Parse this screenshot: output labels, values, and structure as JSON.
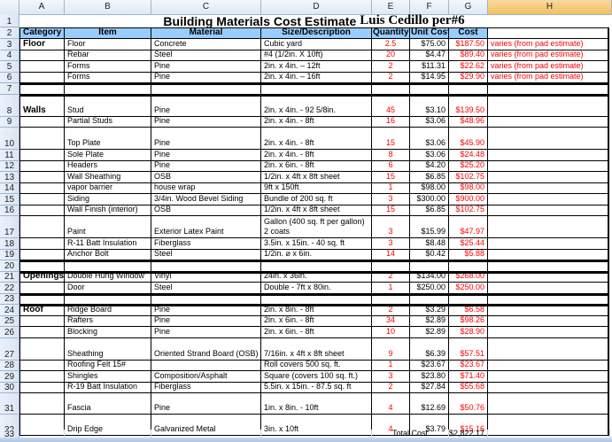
{
  "sheet": {
    "columns": [
      "A",
      "B",
      "C",
      "D",
      "E",
      "F",
      "G",
      "H"
    ],
    "selected_column": "H",
    "title": "Building Materials Cost Estimate",
    "author": "Luis Cedillo per#6",
    "headers": {
      "category": "Category",
      "item": "Item",
      "material": "Material",
      "size": "Size/Description",
      "quantity": "Quantity",
      "unit_cost": "Unit Cost",
      "cost": "Cost",
      "note": ""
    },
    "rows": [
      {
        "num": "3",
        "category": "Floor",
        "item": "Floor",
        "material": "Concrete",
        "size": "Cubic yard",
        "qty": "2.5",
        "unit": "$75.00",
        "cost": "$187.50",
        "note": "varies (from pad estimate)"
      },
      {
        "num": "4",
        "category": "",
        "item": "Rebar",
        "material": "Steel",
        "size": "#4  (1/2in. X 10ft)",
        "qty": "20",
        "unit": "$4.47",
        "cost": "$89.40",
        "note": "varies (from pad estimate)"
      },
      {
        "num": "5",
        "category": "",
        "item": "Forms",
        "material": "Pine",
        "size": "2in. x 4in. – 12ft",
        "qty": "2",
        "unit": "$11.31",
        "cost": "$22.62",
        "note": "varies (from pad estimate)"
      },
      {
        "num": "6",
        "category": "",
        "item": "Forms",
        "material": "Pine",
        "size": "2in. x 4in. – 16ft",
        "qty": "2",
        "unit": "$14.95",
        "cost": "$29.90",
        "note": "varies (from pad estimate)"
      },
      {
        "num": "7",
        "category": "",
        "item": "",
        "material": "",
        "size": "",
        "qty": "",
        "unit": "",
        "cost": "",
        "note": ""
      },
      {
        "num": "8",
        "category": "Walls",
        "item": "Stud",
        "material": "Pine",
        "size": "2in. x 4in. - 92 5/8in.",
        "qty": "45",
        "unit": "$3.10",
        "cost": "$139.50",
        "note": ""
      },
      {
        "num": "9",
        "category": "",
        "item": "Partial Studs",
        "material": "Pine",
        "size": "2in. x 4in. - 8ft",
        "qty": "16",
        "unit": "$3.06",
        "cost": "$48.96",
        "note": ""
      },
      {
        "num": "10",
        "category": "",
        "item": "Top Plate",
        "material": "Pine",
        "size": "2in. x 4in. - 8ft",
        "qty": "15",
        "unit": "$3.06",
        "cost": "$45.90",
        "note": ""
      },
      {
        "num": "11",
        "category": "",
        "item": "Sole Plate",
        "material": "Pine",
        "size": "2in. x 4in. - 8ft",
        "qty": "8",
        "unit": "$3.06",
        "cost": "$24.48",
        "note": ""
      },
      {
        "num": "12",
        "category": "",
        "item": "Headers",
        "material": "Pine",
        "size": "2in. x 6in. - 8ft",
        "qty": "6",
        "unit": "$4.20",
        "cost": "$25.20",
        "note": ""
      },
      {
        "num": "13",
        "category": "",
        "item": "Wall Sheathing",
        "material": "OSB",
        "size": "1/2in. x 4ft x 8ft sheet",
        "qty": "15",
        "unit": "$6.85",
        "cost": "$102.75",
        "note": ""
      },
      {
        "num": "14",
        "category": "",
        "item": "vapor barrier",
        "material": "house wrap",
        "size": "9ft x 150ft",
        "qty": "1",
        "unit": "$98.00",
        "cost": "$98.00",
        "note": ""
      },
      {
        "num": "15",
        "category": "",
        "item": "Siding",
        "material": "3/4in. Wood  Bevel Siding",
        "size": "Bundle of 200 sq. ft",
        "qty": "3",
        "unit": "$300.00",
        "cost": "$900.00",
        "note": ""
      },
      {
        "num": "16",
        "category": "",
        "item": "Wall Finish (interior)",
        "material": "OSB",
        "size": "1/2in. x 4ft x 8ft  sheet",
        "qty": "15",
        "unit": "$6.85",
        "cost": "$102.75",
        "note": ""
      },
      {
        "num": "17",
        "category": "",
        "item": "Paint",
        "material": "Exterior Latex Paint",
        "size": "Gallon (400 sq. ft per gallon) 2 coats",
        "qty": "3",
        "unit": "$15.99",
        "cost": "$47.97",
        "note": ""
      },
      {
        "num": "18",
        "category": "",
        "item": "R-11 Batt Insulation",
        "material": "Fiberglass",
        "size": "3.5in. x 15in. - 40 sq. ft",
        "qty": "3",
        "unit": "$8.48",
        "cost": "$25.44",
        "note": ""
      },
      {
        "num": "19",
        "category": "",
        "item": "Anchor Bolt",
        "material": "Steel",
        "size": "1/2in. ⌀ x 6in.",
        "qty": "14",
        "unit": "$0.42",
        "cost": "$5.88",
        "note": ""
      },
      {
        "num": "20",
        "category": "",
        "item": "",
        "material": "",
        "size": "",
        "qty": "",
        "unit": "",
        "cost": "",
        "note": ""
      },
      {
        "num": "21",
        "category": "Openings",
        "item": "Double Hung Window",
        "material": "Vinyl",
        "size": "24in. x 36in.",
        "qty": "2",
        "unit": "$134.00",
        "cost": "$268.00",
        "note": ""
      },
      {
        "num": "22",
        "category": "",
        "item": "Door",
        "material": "Steel",
        "size": "Double - 7ft x 80in.",
        "qty": "1",
        "unit": "$250.00",
        "cost": "$250.00",
        "note": ""
      },
      {
        "num": "23",
        "category": "",
        "item": "",
        "material": "",
        "size": "",
        "qty": "",
        "unit": "",
        "cost": "",
        "note": ""
      },
      {
        "num": "24",
        "category": "Roof",
        "item": "Ridge Board",
        "material": "Pine",
        "size": "2in. x 8in. - 8ft",
        "qty": "2",
        "unit": "$3.29",
        "cost": "$6.58",
        "note": ""
      },
      {
        "num": "25",
        "category": "",
        "item": "Rafters",
        "material": "Pine",
        "size": "2in. x 6in. - 8ft",
        "qty": "34",
        "unit": "$2.89",
        "cost": "$98.26",
        "note": ""
      },
      {
        "num": "26",
        "category": "",
        "item": "Blocking",
        "material": "Pine",
        "size": "2in. x 6in. - 8ft",
        "qty": "10",
        "unit": "$2.89",
        "cost": "$28.90",
        "note": ""
      },
      {
        "num": "27",
        "category": "",
        "item": "Sheathing",
        "material": "Oriented Strand Board (OSB)",
        "size": "7/16in. x 4ft x 8ft  sheet",
        "qty": "9",
        "unit": "$6.39",
        "cost": "$57.51",
        "note": ""
      },
      {
        "num": "28",
        "category": "",
        "item": "Roofing Felt 15#",
        "material": "",
        "size": "Roll covers 500 sq. ft.",
        "qty": "1",
        "unit": "$23.67",
        "cost": "$23.67",
        "note": ""
      },
      {
        "num": "29",
        "category": "",
        "item": "Shingles",
        "material": "Composition/Asphalt",
        "size": "Square (covers 100 sq. ft.)",
        "qty": "3",
        "unit": "$23.80",
        "cost": "$71.40",
        "note": ""
      },
      {
        "num": "30",
        "category": "",
        "item": "R-19 Batt Insulation",
        "material": "Fiberglass",
        "size": "5.5in. x 15in. - 87.5 sq. ft",
        "qty": "2",
        "unit": "$27.84",
        "cost": "$55.68",
        "note": ""
      },
      {
        "num": "31",
        "category": "",
        "item": "Fascia",
        "material": "Pine",
        "size": "1in. x 8in. - 10ft",
        "qty": "4",
        "unit": "$12.69",
        "cost": "$50.76",
        "note": ""
      },
      {
        "num": "32",
        "category": "",
        "item": "Drip Edge",
        "material": "Galvanized Metal",
        "size": "3in. x 10ft",
        "qty": "4",
        "unit": "$3.79",
        "cost": "$15.16",
        "note": ""
      }
    ],
    "total": {
      "num": "33",
      "label": "Total Cost",
      "value": "$2,822.17"
    }
  },
  "colors": {
    "header_fill": "#99ccff",
    "value_red": "#ff0000",
    "selected_column": "#f1c15f"
  }
}
